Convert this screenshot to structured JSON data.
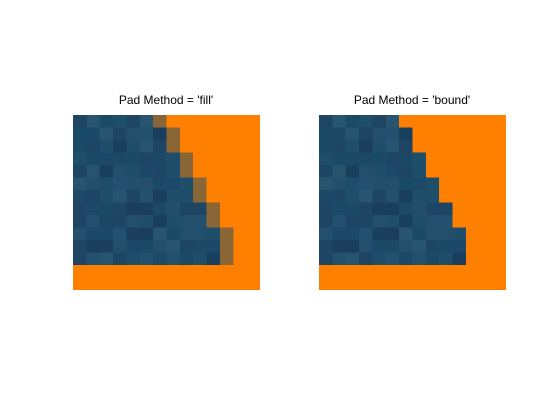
{
  "chart_data": [
    {
      "type": "heatmap",
      "title": "Pad Method = 'fill'",
      "rows": 14,
      "cols": 14,
      "colors": {
        "fill": "#ff8000",
        "blend": "#8a6637",
        "tile": [
          "#1b4a66",
          "#1f4e6b",
          "#244f6c",
          "#1e4564",
          "#275570",
          "#1a3f5d",
          "#22506e",
          "#1c4968"
        ]
      },
      "row_boundary": [
        6,
        7,
        7,
        8,
        8,
        9,
        9,
        10,
        10,
        11,
        11,
        11
      ],
      "blend_edge": true
    },
    {
      "type": "heatmap",
      "title": "Pad Method = 'bound'",
      "rows": 14,
      "cols": 14,
      "colors": {
        "fill": "#ff8000",
        "tile": [
          "#1b4a66",
          "#1f4e6b",
          "#244f6c",
          "#1e4564",
          "#275570",
          "#1a3f5d",
          "#22506e",
          "#1c4968"
        ]
      },
      "row_boundary": [
        6,
        7,
        7,
        8,
        8,
        9,
        9,
        10,
        10,
        11,
        11,
        11
      ],
      "blend_edge": false
    }
  ]
}
